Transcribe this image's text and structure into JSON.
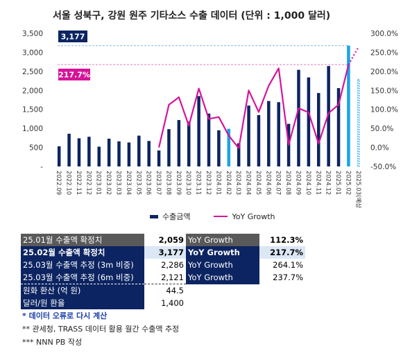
{
  "title": "서울 성북구, 강원 원주 기타소스 수출 데이터 (단위 : 1,000 달러)",
  "chart_data": {
    "type": "bar",
    "categories": [
      "2022.09",
      "2022.10",
      "2022.11",
      "2022.12",
      "2023.01",
      "2023.02",
      "2023.03",
      "2023.04",
      "2023.05",
      "2023.06",
      "2023.07",
      "2023.08",
      "2023.09",
      "2023.10",
      "2023.11",
      "2023.12",
      "2024.01",
      "2024.02",
      "2024.03",
      "2024.04",
      "2024.05",
      "2024.06",
      "2024.07",
      "2024.08",
      "2024.09",
      "2024.10",
      "2024.11",
      "2024.12",
      "2025.01",
      "2025.02",
      "2025.03(예상)"
    ],
    "series": [
      {
        "name": "수출금액",
        "axis": "left",
        "values": [
          530,
          860,
          740,
          780,
          520,
          730,
          660,
          630,
          810,
          670,
          420,
          980,
          1220,
          1180,
          1850,
          1390,
          950,
          990,
          610,
          1600,
          1350,
          1720,
          1690,
          1120,
          2540,
          2340,
          1930,
          2640,
          2059,
          3177,
          2286
        ]
      },
      {
        "name": "YoY Growth",
        "axis": "right",
        "values": [
          null,
          null,
          null,
          null,
          null,
          null,
          null,
          null,
          null,
          null,
          0,
          112,
          132,
          57,
          155,
          75,
          80,
          31,
          -2,
          150,
          93,
          162,
          208,
          7,
          103,
          92,
          10,
          90,
          112.3,
          217.7,
          264.1
        ]
      }
    ],
    "highlight_labels": {
      "bar": "3,177",
      "line": "217.7%"
    },
    "y_left_ticks": [
      "-",
      "500",
      "1,000",
      "1,500",
      "2,000",
      "2,500",
      "3,000",
      "3,500"
    ],
    "y_left_range": [
      0,
      3500
    ],
    "y_right_ticks": [
      "-50.0%",
      "0.0%",
      "50.0%",
      "100.0%",
      "150.0%",
      "200.0%",
      "250.0%",
      "300.0%"
    ],
    "y_right_range": [
      -50,
      300
    ]
  },
  "legend": {
    "bar": "수출금액",
    "line": "YoY Growth"
  },
  "summary": {
    "rows": [
      {
        "label": "25.01월 수출액 확정치",
        "value": "2,059",
        "yoy_label": "YoY Growth",
        "yoy": "112.3%"
      },
      {
        "label": "25.02월 수출액 확정치",
        "value": "3,177",
        "yoy_label": "YoY Growth",
        "yoy": "217.7%"
      },
      {
        "label": "25.03월 수출액 추정 (3m 비중)",
        "value": "2,286",
        "yoy_label": "YoY Growth",
        "yoy": "264.1%"
      },
      {
        "label": "25.03월 수출액 추정 (6m 비중)",
        "value": "2,121",
        "yoy_label": "YoY Growth",
        "yoy": "237.7%"
      }
    ],
    "extra": [
      {
        "label": "원화 환산 (억 원)",
        "value": "44.5"
      },
      {
        "label": "달러/원 환율",
        "value": "1,400"
      }
    ]
  },
  "notes": [
    "* 데이터 오류로 다시 계산",
    "** 관세청, TRASS 데이터 활용 월간 수출액 추정",
    "*** NNN PB 작성"
  ],
  "colors": {
    "navy": "#0c2461",
    "light_blue": "#1aa3e8",
    "magenta": "#d6139a",
    "gray": "#595959",
    "light": "#dbe7f5"
  }
}
